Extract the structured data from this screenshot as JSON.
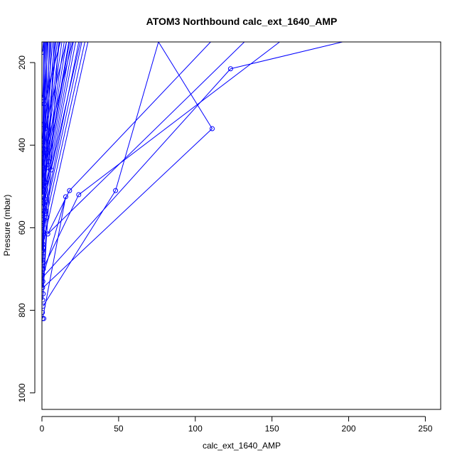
{
  "chart_data": {
    "type": "scatter",
    "title": "ATOM3 Northbound calc_ext_1640_AMP",
    "xlabel": "calc_ext_1640_AMP",
    "ylabel": "Pressure (mbar)",
    "xlim": [
      0,
      260
    ],
    "ylim": [
      1040,
      150
    ],
    "x_ticks": [
      0,
      50,
      100,
      150,
      200,
      250
    ],
    "y_ticks": [
      200,
      400,
      600,
      800,
      1000
    ],
    "series_color": "#0000ff",
    "points": [
      [
        0.3,
        175
      ],
      [
        0.5,
        285
      ],
      [
        0.6,
        350
      ],
      [
        0.4,
        385
      ],
      [
        0.8,
        400
      ],
      [
        0.5,
        420
      ],
      [
        0.3,
        440
      ],
      [
        0.6,
        450
      ],
      [
        0.9,
        465
      ],
      [
        0.4,
        480
      ],
      [
        0.7,
        495
      ],
      [
        0.5,
        505
      ],
      [
        0.3,
        520
      ],
      [
        0.8,
        535
      ],
      [
        0.6,
        550
      ],
      [
        0.4,
        565
      ],
      [
        0.9,
        580
      ],
      [
        0.5,
        595
      ],
      [
        0.7,
        610
      ],
      [
        0.3,
        625
      ],
      [
        0.6,
        640
      ],
      [
        0.4,
        655
      ],
      [
        0.8,
        670
      ],
      [
        0.5,
        685
      ],
      [
        0.7,
        700
      ],
      [
        0.3,
        715
      ],
      [
        0.6,
        730
      ],
      [
        0.4,
        745
      ],
      [
        0.8,
        760
      ],
      [
        0.5,
        775
      ],
      [
        0.7,
        790
      ],
      [
        0.3,
        805
      ],
      [
        0.4,
        820
      ],
      [
        1.2,
        820
      ],
      [
        1.5,
        300
      ],
      [
        2.0,
        360
      ],
      [
        2.5,
        410
      ],
      [
        3.0,
        455
      ],
      [
        2.2,
        490
      ],
      [
        1.8,
        530
      ],
      [
        2.6,
        560
      ],
      [
        3.2,
        575
      ],
      [
        6.0,
        460
      ],
      [
        4.5,
        440
      ],
      [
        3.8,
        615
      ],
      [
        15.5,
        525
      ],
      [
        18.0,
        510
      ],
      [
        24.0,
        520
      ],
      [
        48.0,
        510
      ],
      [
        111.0,
        360
      ],
      [
        123.0,
        215
      ],
      [
        1.0,
        500
      ],
      [
        1.3,
        540
      ],
      [
        0.9,
        700
      ],
      [
        1.1,
        650
      ]
    ],
    "segments": [
      [
        [
          0.3,
          175
        ],
        [
          1.0,
          150
        ]
      ],
      [
        [
          0.5,
          285
        ],
        [
          2.0,
          150
        ]
      ],
      [
        [
          0.6,
          350
        ],
        [
          3.0,
          150
        ]
      ],
      [
        [
          0.4,
          385
        ],
        [
          4.0,
          150
        ]
      ],
      [
        [
          0.8,
          400
        ],
        [
          5.5,
          150
        ]
      ],
      [
        [
          0.5,
          420
        ],
        [
          7.0,
          150
        ]
      ],
      [
        [
          0.3,
          440
        ],
        [
          8.5,
          150
        ]
      ],
      [
        [
          0.6,
          450
        ],
        [
          10.0,
          150
        ]
      ],
      [
        [
          0.9,
          465
        ],
        [
          11.5,
          150
        ]
      ],
      [
        [
          0.4,
          480
        ],
        [
          13.0,
          150
        ]
      ],
      [
        [
          0.7,
          495
        ],
        [
          14.5,
          150
        ]
      ],
      [
        [
          0.5,
          505
        ],
        [
          16.0,
          150
        ]
      ],
      [
        [
          0.3,
          520
        ],
        [
          17.5,
          150
        ]
      ],
      [
        [
          0.8,
          535
        ],
        [
          19.0,
          150
        ]
      ],
      [
        [
          0.6,
          550
        ],
        [
          20.5,
          150
        ]
      ],
      [
        [
          0.4,
          565
        ],
        [
          22.0,
          150
        ]
      ],
      [
        [
          0.9,
          580
        ],
        [
          24.0,
          150
        ]
      ],
      [
        [
          0.5,
          595
        ],
        [
          26.0,
          150
        ]
      ],
      [
        [
          0.7,
          610
        ],
        [
          28.0,
          150
        ]
      ],
      [
        [
          1.5,
          300
        ],
        [
          12.0,
          150
        ]
      ],
      [
        [
          2.0,
          360
        ],
        [
          16.0,
          150
        ]
      ],
      [
        [
          2.5,
          410
        ],
        [
          20.0,
          150
        ]
      ],
      [
        [
          3.0,
          455
        ],
        [
          9.0,
          150
        ]
      ],
      [
        [
          6.0,
          460
        ],
        [
          25.0,
          150
        ]
      ],
      [
        [
          4.5,
          440
        ],
        [
          18.0,
          150
        ]
      ],
      [
        [
          0.6,
          640
        ],
        [
          30.0,
          150
        ]
      ],
      [
        [
          0.4,
          655
        ],
        [
          2.5,
          150
        ]
      ],
      [
        [
          0.8,
          670
        ],
        [
          6.0,
          150
        ]
      ],
      [
        [
          0.5,
          685
        ],
        [
          3.5,
          150
        ]
      ],
      [
        [
          0.3,
          520
        ],
        [
          1.2,
          150
        ]
      ],
      [
        [
          0.6,
          730
        ],
        [
          1.5,
          150
        ]
      ],
      [
        [
          0.4,
          745
        ],
        [
          4.8,
          150
        ]
      ],
      [
        [
          0.8,
          760
        ],
        [
          7.8,
          150
        ]
      ],
      [
        [
          0.5,
          775
        ],
        [
          10.8,
          150
        ]
      ],
      [
        [
          15.5,
          525
        ],
        [
          0.5,
          720
        ]
      ],
      [
        [
          18.0,
          510
        ],
        [
          110.0,
          150
        ]
      ],
      [
        [
          24.0,
          520
        ],
        [
          155.0,
          150
        ]
      ],
      [
        [
          48.0,
          510
        ],
        [
          76.0,
          150
        ]
      ],
      [
        [
          111.0,
          360
        ],
        [
          76.0,
          150
        ]
      ],
      [
        [
          111.0,
          360
        ],
        [
          0.8,
          745
        ]
      ],
      [
        [
          123.0,
          215
        ],
        [
          0.5,
          720
        ]
      ],
      [
        [
          123.0,
          215
        ],
        [
          196.0,
          150
        ]
      ],
      [
        [
          48.0,
          510
        ],
        [
          0.7,
          790
        ]
      ],
      [
        [
          24.0,
          520
        ],
        [
          0.6,
          700
        ]
      ],
      [
        [
          18.0,
          510
        ],
        [
          3.8,
          615
        ]
      ],
      [
        [
          3.8,
          615
        ],
        [
          132.0,
          150
        ]
      ],
      [
        [
          15.5,
          525
        ],
        [
          0.5,
          820
        ]
      ]
    ]
  }
}
